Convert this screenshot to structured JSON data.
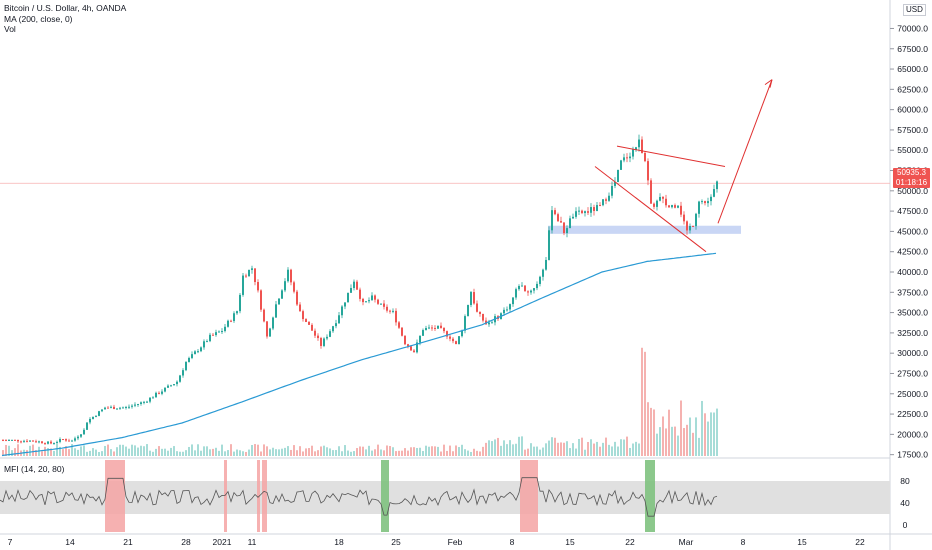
{
  "legend": {
    "symbol": "Bitcoin / U.S. Dollar, 4h, OANDA",
    "ma": "MA (200, close, 0)",
    "vol": "Vol"
  },
  "mfi": {
    "label": "MFI (14, 20, 80)",
    "levels": [
      "80",
      "40",
      "0"
    ]
  },
  "price_tag": {
    "price": "50935.3",
    "countdown": "01:18:16"
  },
  "currency": "USD",
  "colors": {
    "up": "#26a69a",
    "down": "#ef5350",
    "ma": "#2a9ad4",
    "channel": "#e03030",
    "support_zone": "#c9d6f5",
    "mfi_band": "#e0e0e0",
    "mfi_over": "#f5a3a3",
    "mfi_under": "#7fc27f"
  },
  "chart_data": {
    "type": "candlestick",
    "title": "Bitcoin / U.S. Dollar, 4h, OANDA",
    "ylim": [
      16000,
      71000
    ],
    "y_ticks": [
      "70000.0",
      "67500.0",
      "65000.0",
      "62500.0",
      "60000.0",
      "57500.0",
      "55000.0",
      "52500.0",
      "50000.0",
      "47500.0",
      "45000.0",
      "42500.0",
      "40000.0",
      "37500.0",
      "35000.0",
      "32500.0",
      "30000.0",
      "27500.0",
      "25000.0",
      "22500.0",
      "20000.0",
      "17500.0"
    ],
    "x_ticks": [
      "7",
      "14",
      "21",
      "28",
      "2021",
      "11",
      "18",
      "25",
      "Feb",
      "8",
      "15",
      "22",
      "Mar",
      "8",
      "15",
      "22"
    ],
    "price_path": [
      [
        0,
        19300
      ],
      [
        10,
        19200
      ],
      [
        16,
        18900
      ],
      [
        20,
        19400
      ],
      [
        23,
        19200
      ],
      [
        27,
        20500
      ],
      [
        28,
        21600
      ],
      [
        34,
        23300
      ],
      [
        41,
        23300
      ],
      [
        47,
        24000
      ],
      [
        58,
        26500
      ],
      [
        61,
        28900
      ],
      [
        69,
        32000
      ],
      [
        73,
        32800
      ],
      [
        78,
        35200
      ],
      [
        80,
        39500
      ],
      [
        83,
        40500
      ],
      [
        85,
        37500
      ],
      [
        88,
        32000
      ],
      [
        91,
        36000
      ],
      [
        95,
        40000
      ],
      [
        99,
        35000
      ],
      [
        103,
        32800
      ],
      [
        106,
        31000
      ],
      [
        111,
        34000
      ],
      [
        117,
        39000
      ],
      [
        120,
        36000
      ],
      [
        123,
        36800
      ],
      [
        127,
        35500
      ],
      [
        130,
        35000
      ],
      [
        134,
        31300
      ],
      [
        137,
        30200
      ],
      [
        140,
        33000
      ],
      [
        145,
        33100
      ],
      [
        149,
        32000
      ],
      [
        151,
        31000
      ],
      [
        153,
        33000
      ],
      [
        156,
        37600
      ],
      [
        158,
        35000
      ],
      [
        161,
        33600
      ],
      [
        165,
        34500
      ],
      [
        169,
        36000
      ],
      [
        172,
        38500
      ],
      [
        175,
        37500
      ],
      [
        178,
        38500
      ],
      [
        181,
        41500
      ],
      [
        183,
        48000
      ],
      [
        187,
        45000
      ],
      [
        190,
        47000
      ],
      [
        195,
        47500
      ],
      [
        199,
        48000
      ],
      [
        204,
        51000
      ],
      [
        206,
        53500
      ],
      [
        210,
        55000
      ],
      [
        212,
        56000
      ],
      [
        214,
        54000
      ],
      [
        216,
        48000
      ],
      [
        219,
        49000
      ],
      [
        222,
        48000
      ],
      [
        225,
        48500
      ],
      [
        228,
        45000
      ],
      [
        230,
        46000
      ],
      [
        232,
        49000
      ],
      [
        234,
        48500
      ],
      [
        236,
        49000
      ],
      [
        238,
        50935
      ]
    ],
    "ma_path": [
      [
        0,
        17400
      ],
      [
        20,
        18300
      ],
      [
        40,
        19600
      ],
      [
        60,
        21400
      ],
      [
        80,
        24000
      ],
      [
        100,
        26700
      ],
      [
        120,
        29200
      ],
      [
        140,
        31300
      ],
      [
        160,
        33500
      ],
      [
        180,
        36800
      ],
      [
        200,
        40000
      ],
      [
        215,
        41300
      ],
      [
        238,
        42300
      ]
    ],
    "support_zone": [
      44700,
      45700
    ],
    "channel": {
      "upper": [
        [
          55500,
          57800
        ],
        [
          53000,
          47000
        ]
      ],
      "lower": [
        [
          53000,
          52800
        ],
        [
          44000,
          42500
        ]
      ]
    },
    "projection_target": 63700,
    "mfi_zones": {
      "overbought": [
        [
          105,
          125
        ],
        [
          224,
          227
        ],
        [
          257,
          260
        ],
        [
          262,
          267
        ],
        [
          520,
          538
        ]
      ],
      "oversold": [
        [
          381,
          389
        ],
        [
          645,
          655
        ]
      ]
    }
  }
}
